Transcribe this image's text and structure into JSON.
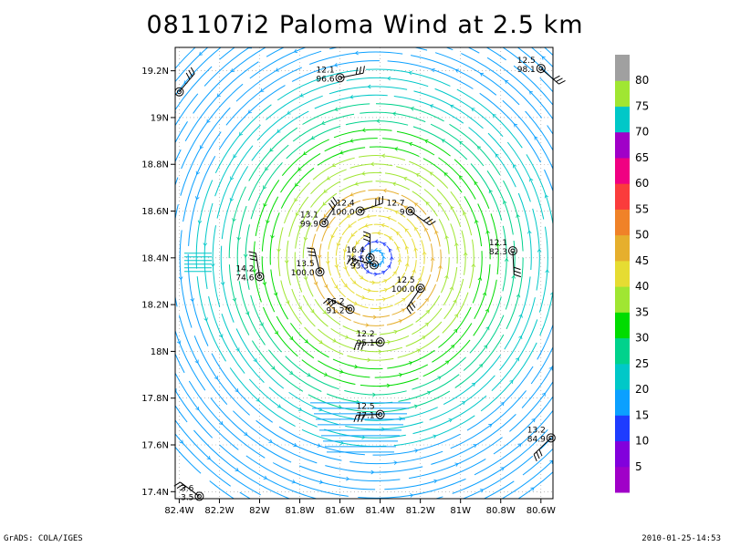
{
  "title": "081107i2 Paloma Wind at 2.5 km",
  "footer": {
    "left": "GrADS: COLA/IGES",
    "right": "2010-01-25-14:53"
  },
  "chart_data": {
    "type": "streamline",
    "x_ticks": [
      "82.4W",
      "82.2W",
      "82W",
      "81.8W",
      "81.6W",
      "81.4W",
      "81.2W",
      "81W",
      "80.8W",
      "80.6W"
    ],
    "x_tick_values": [
      -82.4,
      -82.2,
      -82.0,
      -81.8,
      -81.6,
      -81.4,
      -81.2,
      -81.0,
      -80.8,
      -80.6
    ],
    "y_ticks": [
      "17.4N",
      "17.6N",
      "17.8N",
      "18N",
      "18.2N",
      "18.4N",
      "18.6N",
      "18.8N",
      "19N",
      "19.2N"
    ],
    "y_tick_values": [
      17.4,
      17.6,
      17.8,
      18.0,
      18.2,
      18.4,
      18.6,
      18.8,
      19.0,
      19.2
    ],
    "xlim": [
      -82.42,
      -80.54
    ],
    "ylim": [
      17.37,
      19.3
    ],
    "grid": true,
    "center": {
      "lon": -81.42,
      "lat": 18.4
    },
    "colorbar": {
      "labels": [
        "5",
        "10",
        "15",
        "20",
        "25",
        "30",
        "35",
        "40",
        "45",
        "50",
        "55",
        "60",
        "65",
        "70",
        "75",
        "80"
      ],
      "colors": [
        "#a000c8",
        "#8200dc",
        "#1e3cff",
        "#0ba0ff",
        "#00c8c8",
        "#00d28c",
        "#00dc00",
        "#a0e632",
        "#e6dc32",
        "#e6af2d",
        "#f08228",
        "#fa3c3c",
        "#f00082",
        "#a000c8",
        "#00c8c8",
        "#a0e632",
        "#a0a0a0"
      ]
    },
    "stations": [
      {
        "lon": -82.4,
        "lat": 19.11,
        "top": "",
        "bottom": ""
      },
      {
        "lon": -81.6,
        "lat": 19.17,
        "top": "12.1",
        "bottom": "96.6"
      },
      {
        "lon": -80.6,
        "lat": 19.21,
        "top": "12.5",
        "bottom": "98.1"
      },
      {
        "lon": -81.68,
        "lat": 18.55,
        "top": "13.1",
        "bottom": "99.9"
      },
      {
        "lon": -81.5,
        "lat": 18.6,
        "top": "12.4",
        "bottom": "100.0"
      },
      {
        "lon": -81.25,
        "lat": 18.6,
        "top": "12.7",
        "bottom": "9"
      },
      {
        "lon": -80.74,
        "lat": 18.43,
        "top": "12.1",
        "bottom": "82.3"
      },
      {
        "lon": -81.45,
        "lat": 18.4,
        "top": "16.4",
        "bottom": "76.5"
      },
      {
        "lon": -81.43,
        "lat": 18.37,
        "top": "",
        "bottom": "93.3"
      },
      {
        "lon": -81.7,
        "lat": 18.34,
        "top": "13.5",
        "bottom": "100.0"
      },
      {
        "lon": -82.0,
        "lat": 18.32,
        "top": "14.2",
        "bottom": "74.6"
      },
      {
        "lon": -81.2,
        "lat": 18.27,
        "top": "12.5",
        "bottom": "100.0"
      },
      {
        "lon": -81.55,
        "lat": 18.18,
        "top": "16.2",
        "bottom": "91.2"
      },
      {
        "lon": -81.4,
        "lat": 18.04,
        "top": "12.2",
        "bottom": "95.1"
      },
      {
        "lon": -81.4,
        "lat": 17.73,
        "top": "12.5",
        "bottom": "77.1"
      },
      {
        "lon": -80.55,
        "lat": 17.63,
        "top": "13.2",
        "bottom": "84.9"
      },
      {
        "lon": -82.3,
        "lat": 17.38,
        "top": "3.6",
        "bottom": "3.5"
      }
    ]
  }
}
